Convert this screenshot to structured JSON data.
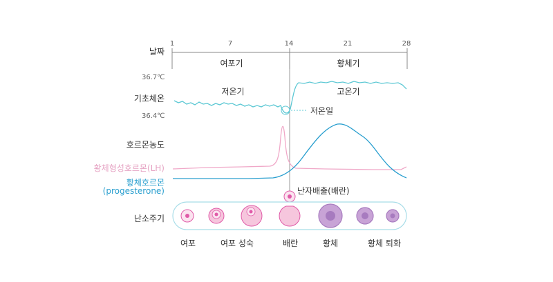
{
  "rows": {
    "day": "날짜",
    "bbt": "기초체온",
    "hormone": "호르몬농도",
    "cycle": "난소주기"
  },
  "days": [
    "1",
    "7",
    "14",
    "21",
    "28"
  ],
  "phases": {
    "follicular": "여포기",
    "luteal": "황체기"
  },
  "temps": {
    "high": "36.7℃",
    "low": "36.4℃"
  },
  "bbt_labels": {
    "low_phase": "저온기",
    "high_phase": "고온기",
    "lowest_day": "저온일"
  },
  "hormones": {
    "lh": "황체형성호르몬(LH)",
    "progesterone": "황체호르몬",
    "progesterone_en": "(progesterone)"
  },
  "ovulation": "난자배출(배란)",
  "stages": [
    "여포",
    "여포 성숙",
    "배란",
    "황체",
    "황체 퇴화"
  ],
  "colors": {
    "bbt": "#5cc8d4",
    "lh": "#f0a8c8",
    "progesterone": "#2a9fcf",
    "cycle_border": "#a8dde8",
    "follicle": "#e05aa8",
    "follicle_fill": "#f6c6dd",
    "corpus": "#a77bbf",
    "corpus_fill": "#d4b3de"
  }
}
